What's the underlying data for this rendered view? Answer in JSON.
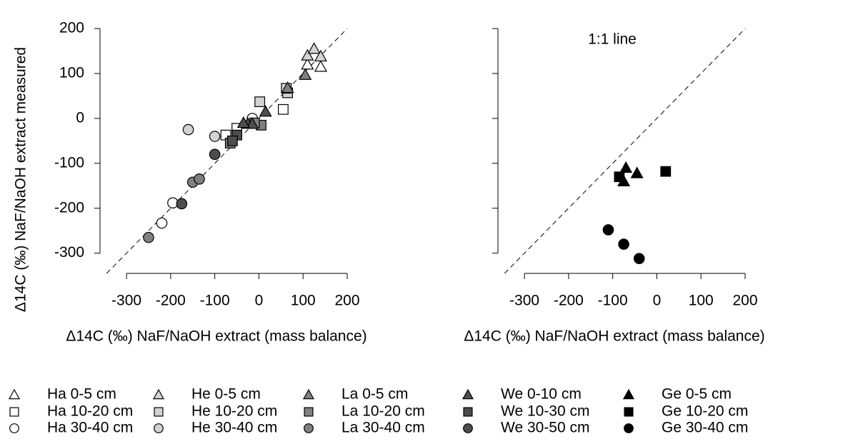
{
  "chart_data": [
    {
      "type": "scatter",
      "x_label": "Δ14C (‰) NaF/NaOH extract (mass balance)",
      "y_label": "Δ14C (‰) NaF/NaOH extract measured",
      "xlim": [
        -360,
        200
      ],
      "ylim": [
        -345,
        200
      ],
      "xticks": [
        -300,
        -200,
        -100,
        0,
        100,
        200
      ],
      "yticks": [
        -300,
        -200,
        -100,
        0,
        100,
        200
      ],
      "ytick_labels": true,
      "one_to_one": true,
      "series": [
        {
          "name": "Ha 0-5 cm",
          "color": "#ffffff",
          "marker": "triangle",
          "x": [
            110,
            140
          ],
          "values": [
            120,
            115
          ]
        },
        {
          "name": "Ha 10-20 cm",
          "color": "#ffffff",
          "marker": "square",
          "x": [
            -75,
            -50,
            55
          ],
          "values": [
            -37,
            -22,
            20
          ]
        },
        {
          "name": "Ha 30-40 cm",
          "color": "#ffffff",
          "marker": "circle",
          "x": [
            -15,
            -195,
            -220
          ],
          "values": [
            0,
            -188,
            -233
          ]
        },
        {
          "name": "He 0-5 cm",
          "color": "#d3d3d3",
          "marker": "triangle",
          "x": [
            110,
            125,
            140
          ],
          "values": [
            140,
            155,
            138
          ]
        },
        {
          "name": "He 10-20 cm",
          "color": "#d3d3d3",
          "marker": "square",
          "x": [
            2,
            65,
            62
          ],
          "values": [
            37,
            57,
            67
          ]
        },
        {
          "name": "He 30-40 cm",
          "color": "#d3d3d3",
          "marker": "circle",
          "x": [
            -160,
            -100
          ],
          "values": [
            -25,
            -40
          ]
        },
        {
          "name": "La 0-5 cm",
          "color": "#808080",
          "marker": "triangle",
          "x": [
            65,
            105
          ],
          "values": [
            68,
            97
          ]
        },
        {
          "name": "La 10-20 cm",
          "color": "#808080",
          "marker": "square",
          "x": [
            5,
            -65,
            -10
          ],
          "values": [
            -15,
            -55,
            -10
          ]
        },
        {
          "name": "La 30-40 cm",
          "color": "#808080",
          "marker": "circle",
          "x": [
            -150,
            -135,
            -250
          ],
          "values": [
            -142,
            -135,
            -265
          ]
        },
        {
          "name": "We 0-10 cm",
          "color": "#4d4d4d",
          "marker": "triangle",
          "x": [
            15,
            -25,
            -15,
            -35
          ],
          "values": [
            15,
            -12,
            -12,
            -10
          ]
        },
        {
          "name": "We 10-30 cm",
          "color": "#4d4d4d",
          "marker": "square",
          "x": [
            -50,
            -60
          ],
          "values": [
            -37,
            -50
          ]
        },
        {
          "name": "We 30-50 cm",
          "color": "#4d4d4d",
          "marker": "circle",
          "x": [
            -100,
            -175
          ],
          "values": [
            -80,
            -190
          ]
        }
      ]
    },
    {
      "type": "scatter",
      "x_label": "Δ14C (‰) NaF/NaOH extract (mass balance)",
      "annotation": "1:1 line",
      "xlim": [
        -360,
        200
      ],
      "ylim": [
        -345,
        200
      ],
      "xticks": [
        -300,
        -200,
        -100,
        0,
        100,
        200
      ],
      "yticks": [
        -300,
        -200,
        -100,
        0,
        100,
        200
      ],
      "ytick_labels": false,
      "one_to_one": true,
      "series": [
        {
          "name": "Ge 0-5 cm",
          "color": "#000000",
          "marker": "triangle",
          "x": [
            -70,
            -45,
            -75
          ],
          "values": [
            -110,
            -122,
            -140
          ]
        },
        {
          "name": "Ge 10-20 cm",
          "color": "#000000",
          "marker": "square",
          "x": [
            -85,
            20
          ],
          "values": [
            -130,
            -118
          ]
        },
        {
          "name": "Ge 30-40 cm",
          "color": "#000000",
          "marker": "circle",
          "x": [
            -110,
            -75,
            -40
          ],
          "values": [
            -248,
            -280,
            -312
          ]
        }
      ]
    }
  ]
}
